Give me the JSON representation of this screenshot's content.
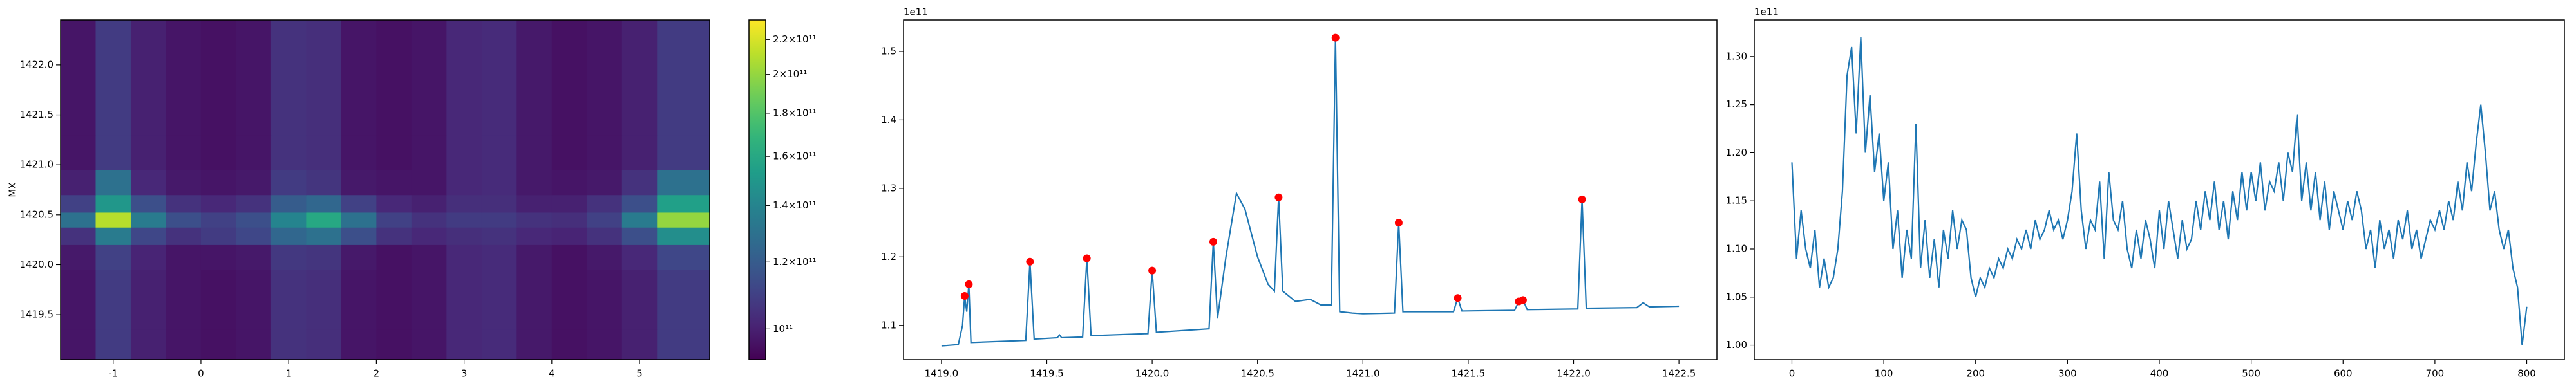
{
  "chart_data": [
    {
      "type": "heatmap",
      "ylabel": "MX",
      "x": [
        -1.4,
        -1.0,
        -0.6,
        -0.2,
        0.2,
        0.6,
        1.0,
        1.4,
        1.8,
        2.2,
        2.6,
        3.0,
        3.4,
        3.8,
        4.2,
        4.6,
        5.0,
        5.4
      ],
      "y": [
        1419.2,
        1419.5,
        1419.8,
        1420.1,
        1420.3,
        1420.45,
        1420.6,
        1420.8,
        1421.1,
        1421.5,
        1421.9,
        1422.3
      ],
      "z": [
        [
          97000000000.0,
          108000000000.0,
          100000000000.0,
          97000000000.0,
          96000000000.0,
          97000000000.0,
          105000000000.0,
          104000000000.0,
          97000000000.0,
          96000000000.0,
          97000000000.0,
          102000000000.0,
          103000000000.0,
          98000000000.0,
          96000000000.0,
          97000000000.0,
          100000000000.0,
          108000000000.0
        ],
        [
          97000000000.0,
          108000000000.0,
          100000000000.0,
          97000000000.0,
          96000000000.0,
          97000000000.0,
          105000000000.0,
          104000000000.0,
          97000000000.0,
          96000000000.0,
          97000000000.0,
          102000000000.0,
          103000000000.0,
          98000000000.0,
          96000000000.0,
          97000000000.0,
          100000000000.0,
          108000000000.0
        ],
        [
          97000000000.0,
          108000000000.0,
          100000000000.0,
          97000000000.0,
          96000000000.0,
          97000000000.0,
          105000000000.0,
          104000000000.0,
          97000000000.0,
          96000000000.0,
          97000000000.0,
          102000000000.0,
          103000000000.0,
          98000000000.0,
          96000000000.0,
          97000000000.0,
          100000000000.0,
          108000000000.0
        ],
        [
          98000000000.0,
          110000000000.0,
          101000000000.0,
          97000000000.0,
          97000000000.0,
          98000000000.0,
          107000000000.0,
          106000000000.0,
          98000000000.0,
          96000000000.0,
          97000000000.0,
          102000000000.0,
          103000000000.0,
          98000000000.0,
          96000000000.0,
          98000000000.0,
          102000000000.0,
          112000000000.0
        ],
        [
          105000000000.0,
          135000000000.0,
          112000000000.0,
          105000000000.0,
          108000000000.0,
          112000000000.0,
          125000000000.0,
          130000000000.0,
          115000000000.0,
          105000000000.0,
          102000000000.0,
          104000000000.0,
          105000000000.0,
          102000000000.0,
          101000000000.0,
          105000000000.0,
          115000000000.0,
          145000000000.0
        ],
        [
          130000000000.0,
          210000000000.0,
          135000000000.0,
          115000000000.0,
          110000000000.0,
          115000000000.0,
          140000000000.0,
          160000000000.0,
          130000000000.0,
          110000000000.0,
          105000000000.0,
          108000000000.0,
          108000000000.0,
          105000000000.0,
          104000000000.0,
          110000000000.0,
          135000000000.0,
          200000000000.0
        ],
        [
          110000000000.0,
          150000000000.0,
          115000000000.0,
          105000000000.0,
          102000000000.0,
          105000000000.0,
          120000000000.0,
          125000000000.0,
          110000000000.0,
          102000000000.0,
          100000000000.0,
          104000000000.0,
          104000000000.0,
          100000000000.0,
          100000000000.0,
          105000000000.0,
          115000000000.0,
          155000000000.0
        ],
        [
          100000000000.0,
          130000000000.0,
          102000000000.0,
          98000000000.0,
          97000000000.0,
          98000000000.0,
          108000000000.0,
          106000000000.0,
          98000000000.0,
          97000000000.0,
          97000000000.0,
          102000000000.0,
          103000000000.0,
          98000000000.0,
          97000000000.0,
          98000000000.0,
          105000000000.0,
          130000000000.0
        ],
        [
          97000000000.0,
          108000000000.0,
          100000000000.0,
          97000000000.0,
          96000000000.0,
          97000000000.0,
          105000000000.0,
          104000000000.0,
          97000000000.0,
          96000000000.0,
          97000000000.0,
          102000000000.0,
          103000000000.0,
          98000000000.0,
          96000000000.0,
          97000000000.0,
          100000000000.0,
          108000000000.0
        ],
        [
          97000000000.0,
          108000000000.0,
          100000000000.0,
          97000000000.0,
          96000000000.0,
          97000000000.0,
          105000000000.0,
          104000000000.0,
          97000000000.0,
          96000000000.0,
          97000000000.0,
          102000000000.0,
          103000000000.0,
          98000000000.0,
          96000000000.0,
          97000000000.0,
          100000000000.0,
          108000000000.0
        ],
        [
          97000000000.0,
          108000000000.0,
          100000000000.0,
          97000000000.0,
          96000000000.0,
          97000000000.0,
          105000000000.0,
          104000000000.0,
          97000000000.0,
          96000000000.0,
          97000000000.0,
          102000000000.0,
          103000000000.0,
          98000000000.0,
          96000000000.0,
          97000000000.0,
          100000000000.0,
          108000000000.0
        ],
        [
          97000000000.0,
          108000000000.0,
          100000000000.0,
          97000000000.0,
          96000000000.0,
          97000000000.0,
          105000000000.0,
          104000000000.0,
          97000000000.0,
          96000000000.0,
          97000000000.0,
          102000000000.0,
          103000000000.0,
          98000000000.0,
          96000000000.0,
          97000000000.0,
          100000000000.0,
          108000000000.0
        ]
      ],
      "xlim": [
        -1.6,
        5.8
      ],
      "ylim": [
        1419.05,
        1422.45
      ],
      "xticks": [
        -1,
        0,
        1,
        2,
        3,
        4,
        5
      ],
      "yticks": [
        1419.5,
        {
          "value": 1420,
          "label": "1420.0"
        },
        1420.5,
        {
          "value": 1421,
          "label": "1421.0"
        },
        1421.5,
        {
          "value": 1422,
          "label": "1422.0"
        }
      ],
      "colormap": "viridis",
      "colorbar": {
        "scale": "log",
        "lim": [
          92000000000.0,
          232000000000.0
        ],
        "ticks": [
          {
            "value": 100000000000.0,
            "label": "10¹¹"
          },
          {
            "value": 120000000000.0,
            "label": "1.2×10¹¹"
          },
          {
            "value": 140000000000.0,
            "label": "1.4×10¹¹"
          },
          {
            "value": 160000000000.0,
            "label": "1.6×10¹¹"
          },
          {
            "value": 180000000000.0,
            "label": "1.8×10¹¹"
          },
          {
            "value": 200000000000.0,
            "label": "2×10¹¹"
          },
          {
            "value": 220000000000.0,
            "label": "2.2×10¹¹"
          }
        ]
      }
    },
    {
      "type": "line",
      "offset_text": "1e11",
      "color": "#1f77b4",
      "x": [
        1419.0,
        1419.08,
        1419.1,
        1419.11,
        1419.12,
        1419.13,
        1419.14,
        1419.4,
        1419.42,
        1419.44,
        1419.55,
        1419.56,
        1419.57,
        1419.67,
        1419.69,
        1419.71,
        1419.98,
        1420.0,
        1420.02,
        1420.27,
        1420.29,
        1420.31,
        1420.35,
        1420.4,
        1420.44,
        1420.5,
        1420.55,
        1420.58,
        1420.6,
        1420.62,
        1420.68,
        1420.75,
        1420.8,
        1420.85,
        1420.87,
        1420.89,
        1420.95,
        1421.0,
        1421.15,
        1421.17,
        1421.19,
        1421.43,
        1421.45,
        1421.47,
        1421.72,
        1421.74,
        1421.76,
        1421.78,
        1422.02,
        1422.04,
        1422.06,
        1422.3,
        1422.33,
        1422.36,
        1422.5
      ],
      "values": [
        1.07,
        1.072,
        1.1,
        1.143,
        1.12,
        1.16,
        1.075,
        1.078,
        1.193,
        1.08,
        1.082,
        1.086,
        1.082,
        1.083,
        1.198,
        1.085,
        1.088,
        1.18,
        1.09,
        1.095,
        1.222,
        1.11,
        1.2,
        1.293,
        1.27,
        1.2,
        1.16,
        1.15,
        1.287,
        1.15,
        1.135,
        1.138,
        1.13,
        1.13,
        1.52,
        1.12,
        1.118,
        1.117,
        1.118,
        1.25,
        1.12,
        1.12,
        1.14,
        1.121,
        1.122,
        1.135,
        1.137,
        1.123,
        1.124,
        1.284,
        1.125,
        1.126,
        1.133,
        1.127,
        1.128
      ],
      "markers": {
        "color": "#ff0000",
        "x": [
          1419.11,
          1419.13,
          1419.42,
          1419.69,
          1420.0,
          1420.29,
          1420.6,
          1420.87,
          1421.17,
          1421.45,
          1421.74,
          1421.76,
          1422.04
        ],
        "values": [
          1.143,
          1.16,
          1.193,
          1.198,
          1.18,
          1.222,
          1.287,
          1.52,
          1.25,
          1.14,
          1.135,
          1.137,
          1.284
        ]
      },
      "xlim": [
        1418.82,
        1422.68
      ],
      "ylim": [
        1.05,
        1.546
      ],
      "xticks": [
        {
          "value": 1419,
          "label": "1419.0"
        },
        1419.5,
        {
          "value": 1420,
          "label": "1420.0"
        },
        1420.5,
        {
          "value": 1421,
          "label": "1421.0"
        },
        1421.5,
        {
          "value": 1422,
          "label": "1422.0"
        },
        1422.5
      ],
      "yticks": [
        1.1,
        1.2,
        1.3,
        1.4,
        1.5
      ]
    },
    {
      "type": "line",
      "offset_text": "1e11",
      "color": "#1f77b4",
      "x": [
        0,
        5,
        10,
        15,
        20,
        25,
        30,
        35,
        40,
        45,
        50,
        55,
        60,
        65,
        70,
        75,
        80,
        85,
        90,
        95,
        100,
        105,
        110,
        115,
        120,
        125,
        130,
        135,
        140,
        145,
        150,
        155,
        160,
        165,
        170,
        175,
        180,
        185,
        190,
        195,
        200,
        205,
        210,
        215,
        220,
        225,
        230,
        235,
        240,
        245,
        250,
        255,
        260,
        265,
        270,
        275,
        280,
        285,
        290,
        295,
        300,
        305,
        310,
        315,
        320,
        325,
        330,
        335,
        340,
        345,
        350,
        355,
        360,
        365,
        370,
        375,
        380,
        385,
        390,
        395,
        400,
        405,
        410,
        415,
        420,
        425,
        430,
        435,
        440,
        445,
        450,
        455,
        460,
        465,
        470,
        475,
        480,
        485,
        490,
        495,
        500,
        505,
        510,
        515,
        520,
        525,
        530,
        535,
        540,
        545,
        550,
        555,
        560,
        565,
        570,
        575,
        580,
        585,
        590,
        595,
        600,
        605,
        610,
        615,
        620,
        625,
        630,
        635,
        640,
        645,
        650,
        655,
        660,
        665,
        670,
        675,
        680,
        685,
        690,
        695,
        700,
        705,
        710,
        715,
        720,
        725,
        730,
        735,
        740,
        745,
        750,
        755,
        760,
        765,
        770,
        775,
        780,
        785,
        790,
        795,
        800
      ],
      "values": [
        1.19,
        1.09,
        1.14,
        1.1,
        1.08,
        1.12,
        1.06,
        1.09,
        1.06,
        1.07,
        1.1,
        1.16,
        1.28,
        1.31,
        1.22,
        1.32,
        1.2,
        1.26,
        1.18,
        1.22,
        1.15,
        1.19,
        1.1,
        1.14,
        1.07,
        1.12,
        1.09,
        1.23,
        1.08,
        1.13,
        1.07,
        1.11,
        1.06,
        1.12,
        1.09,
        1.14,
        1.1,
        1.13,
        1.12,
        1.07,
        1.05,
        1.07,
        1.06,
        1.08,
        1.07,
        1.09,
        1.08,
        1.1,
        1.09,
        1.11,
        1.1,
        1.12,
        1.1,
        1.13,
        1.11,
        1.12,
        1.14,
        1.12,
        1.13,
        1.11,
        1.13,
        1.16,
        1.22,
        1.14,
        1.1,
        1.13,
        1.12,
        1.17,
        1.09,
        1.18,
        1.13,
        1.12,
        1.15,
        1.1,
        1.08,
        1.12,
        1.09,
        1.13,
        1.11,
        1.08,
        1.14,
        1.1,
        1.15,
        1.12,
        1.09,
        1.13,
        1.1,
        1.11,
        1.15,
        1.12,
        1.16,
        1.13,
        1.17,
        1.12,
        1.15,
        1.11,
        1.16,
        1.13,
        1.18,
        1.14,
        1.18,
        1.15,
        1.19,
        1.14,
        1.17,
        1.16,
        1.19,
        1.15,
        1.2,
        1.18,
        1.24,
        1.15,
        1.19,
        1.14,
        1.18,
        1.13,
        1.17,
        1.12,
        1.16,
        1.14,
        1.12,
        1.15,
        1.13,
        1.16,
        1.14,
        1.1,
        1.12,
        1.08,
        1.13,
        1.1,
        1.12,
        1.09,
        1.13,
        1.11,
        1.14,
        1.1,
        1.12,
        1.09,
        1.11,
        1.13,
        1.12,
        1.14,
        1.12,
        1.15,
        1.13,
        1.17,
        1.14,
        1.19,
        1.16,
        1.21,
        1.25,
        1.2,
        1.14,
        1.16,
        1.12,
        1.1,
        1.12,
        1.08,
        1.06,
        1.0,
        1.04
      ],
      "xlim": [
        -41,
        841
      ],
      "ylim": [
        0.985,
        1.338
      ],
      "xticks": [
        0,
        100,
        200,
        300,
        400,
        500,
        600,
        700,
        800
      ],
      "yticks": [
        {
          "value": 1.0,
          "label": "1.00"
        },
        1.05,
        {
          "value": 1.1,
          "label": "1.10"
        },
        1.15,
        {
          "value": 1.2,
          "label": "1.20"
        },
        1.25,
        {
          "value": 1.3,
          "label": "1.30"
        }
      ]
    }
  ]
}
